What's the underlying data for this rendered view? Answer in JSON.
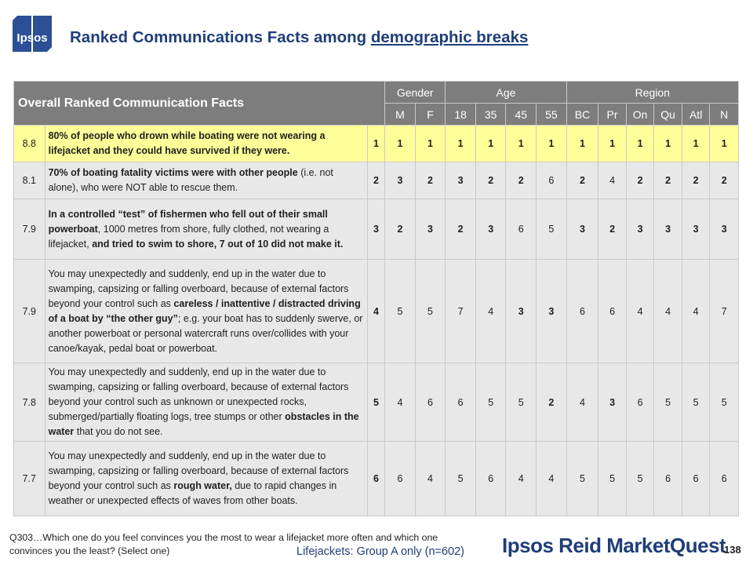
{
  "logo": {
    "text": "Ipsos",
    "color": "#2c4f95"
  },
  "title": {
    "text": "Ranked Communications Facts among ",
    "link": "demographic breaks"
  },
  "table": {
    "title": "Overall Ranked Communication Facts",
    "groups": {
      "gender": "Gender",
      "age": "Age",
      "region": "Region"
    },
    "columns": [
      "M",
      "F",
      "18",
      "35",
      "45",
      "55",
      "BC",
      "Pr",
      "On",
      "Qu",
      "Atl",
      "N"
    ],
    "rows": [
      {
        "score": "8.8",
        "highlight": true,
        "desc": [
          {
            "t": "80% of people who drown while boating were not wearing a lifejacket and they could have survived if they were.",
            "b": true
          }
        ],
        "rank": "1",
        "values": [
          "1",
          "1",
          "1",
          "1",
          "1",
          "1",
          "1",
          "1",
          "1",
          "1",
          "1",
          "1"
        ],
        "bold": [
          1,
          1,
          1,
          1,
          1,
          1,
          1,
          1,
          1,
          1,
          1,
          1
        ]
      },
      {
        "score": "8.1",
        "highlight": false,
        "desc": [
          {
            "t": "70% of boating fatality victims were with other people",
            "b": true
          },
          {
            "t": " (i.e. not alone), who were NOT able to rescue them.",
            "b": false
          }
        ],
        "rank": "2",
        "values": [
          "3",
          "2",
          "3",
          "2",
          "2",
          "6",
          "2",
          "4",
          "2",
          "2",
          "2",
          "2"
        ],
        "bold": [
          1,
          1,
          1,
          1,
          1,
          0,
          1,
          0,
          1,
          1,
          1,
          1
        ]
      },
      {
        "score": "7.9",
        "highlight": false,
        "desc": [
          {
            "t": "In a controlled “test” of fishermen who fell out of their small powerboat",
            "b": true
          },
          {
            "t": ", 1000 metres from shore, fully clothed, not wearing a lifejacket, ",
            "b": false
          },
          {
            "t": "and tried to swim to shore, 7 out of 10 did not make it.",
            "b": true
          }
        ],
        "rank": "3",
        "values": [
          "2",
          "3",
          "2",
          "3",
          "6",
          "5",
          "3",
          "2",
          "3",
          "3",
          "3",
          "3"
        ],
        "bold": [
          1,
          1,
          1,
          1,
          0,
          0,
          1,
          1,
          1,
          1,
          1,
          1
        ]
      },
      {
        "score": "7.9",
        "highlight": false,
        "desc": [
          {
            "t": "You may unexpectedly and suddenly, end up in the water due to swamping, capsizing or falling overboard, because of external factors beyond your control such as ",
            "b": false
          },
          {
            "t": "careless / inattentive / distracted driving of a boat by “the other guy”",
            "b": true
          },
          {
            "t": "; e.g. your boat has to suddenly swerve, or another powerboat or personal watercraft runs over/collides with your canoe/kayak, pedal boat or powerboat.",
            "b": false
          }
        ],
        "rank": "4",
        "values": [
          "5",
          "5",
          "7",
          "4",
          "3",
          "3",
          "6",
          "6",
          "4",
          "4",
          "4",
          "7"
        ],
        "bold": [
          0,
          0,
          0,
          0,
          1,
          1,
          0,
          0,
          0,
          0,
          0,
          0
        ]
      },
      {
        "score": "7.8",
        "highlight": false,
        "desc": [
          {
            "t": "You may unexpectedly and suddenly, end up in the water due to swamping, capsizing or falling overboard, because of external factors beyond your control such as unknown or unexpected rocks, submerged/partially floating logs, tree stumps or other ",
            "b": false
          },
          {
            "t": "obstacles in the water",
            "b": true
          },
          {
            "t": " that you do not see.",
            "b": false
          }
        ],
        "rank": "5",
        "values": [
          "4",
          "6",
          "6",
          "5",
          "5",
          "2",
          "4",
          "3",
          "6",
          "5",
          "5",
          "5"
        ],
        "bold": [
          0,
          0,
          0,
          0,
          0,
          1,
          0,
          1,
          0,
          0,
          0,
          0
        ]
      },
      {
        "score": "7.7",
        "highlight": false,
        "desc": [
          {
            "t": "You may unexpectedly and suddenly, end up in the water due to swamping, capsizing or falling overboard, because of external factors beyond your control such as ",
            "b": false
          },
          {
            "t": "rough water,",
            "b": true
          },
          {
            "t": " due to rapid changes in weather or unexpected effects of waves from other boats.",
            "b": false
          }
        ],
        "rank": "6",
        "values": [
          "6",
          "4",
          "5",
          "6",
          "4",
          "4",
          "5",
          "5",
          "5",
          "6",
          "6",
          "6"
        ],
        "bold": [
          0,
          0,
          0,
          0,
          0,
          0,
          0,
          0,
          0,
          0,
          0,
          0
        ]
      }
    ]
  },
  "footnote": "Q303…Which one do you feel convinces you the most to wear a lifejacket more often and which one convinces you the least?   (Select one)",
  "note": "Lifejackets: Group A only (n=602)",
  "brand": "Ipsos Reid MarketQuest",
  "page_number": "138",
  "colors": {
    "header_bg": "#7d7d7d",
    "highlight_row": "#ffff99",
    "row_bg": "#e8e8e8",
    "title": "#1f3e79"
  }
}
